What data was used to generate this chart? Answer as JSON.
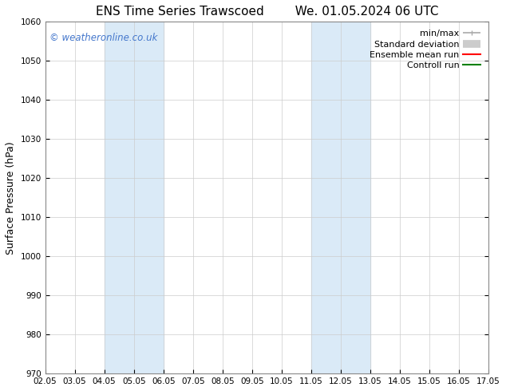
{
  "title_left": "ENS Time Series Trawscoed",
  "title_right": "We. 01.05.2024 06 UTC",
  "ylabel": "Surface Pressure (hPa)",
  "ylim": [
    970,
    1060
  ],
  "yticks": [
    970,
    980,
    990,
    1000,
    1010,
    1020,
    1030,
    1040,
    1050,
    1060
  ],
  "xtick_labels": [
    "02.05",
    "03.05",
    "04.05",
    "05.05",
    "06.05",
    "07.05",
    "08.05",
    "09.05",
    "10.05",
    "11.05",
    "12.05",
    "13.05",
    "14.05",
    "15.05",
    "16.05",
    "17.05"
  ],
  "xtick_positions": [
    0,
    1,
    2,
    3,
    4,
    5,
    6,
    7,
    8,
    9,
    10,
    11,
    12,
    13,
    14,
    15
  ],
  "shaded_regions": [
    {
      "x_start": 2,
      "x_end": 4,
      "color": "#daeaf7"
    },
    {
      "x_start": 9,
      "x_end": 11,
      "color": "#daeaf7"
    }
  ],
  "watermark_text": "© weatheronline.co.uk",
  "watermark_color": "#4477cc",
  "legend_entries": [
    {
      "label": "min/max",
      "color": "#aaaaaa",
      "lw": 1.2,
      "style": "minmax"
    },
    {
      "label": "Standard deviation",
      "color": "#cccccc",
      "lw": 7,
      "style": "block"
    },
    {
      "label": "Ensemble mean run",
      "color": "red",
      "lw": 1.5,
      "style": "line"
    },
    {
      "label": "Controll run",
      "color": "green",
      "lw": 1.5,
      "style": "line"
    }
  ],
  "bg_color": "#ffffff",
  "grid_color": "#cccccc",
  "title_fontsize": 11,
  "tick_fontsize": 7.5,
  "ylabel_fontsize": 9,
  "watermark_fontsize": 8.5,
  "legend_fontsize": 8
}
